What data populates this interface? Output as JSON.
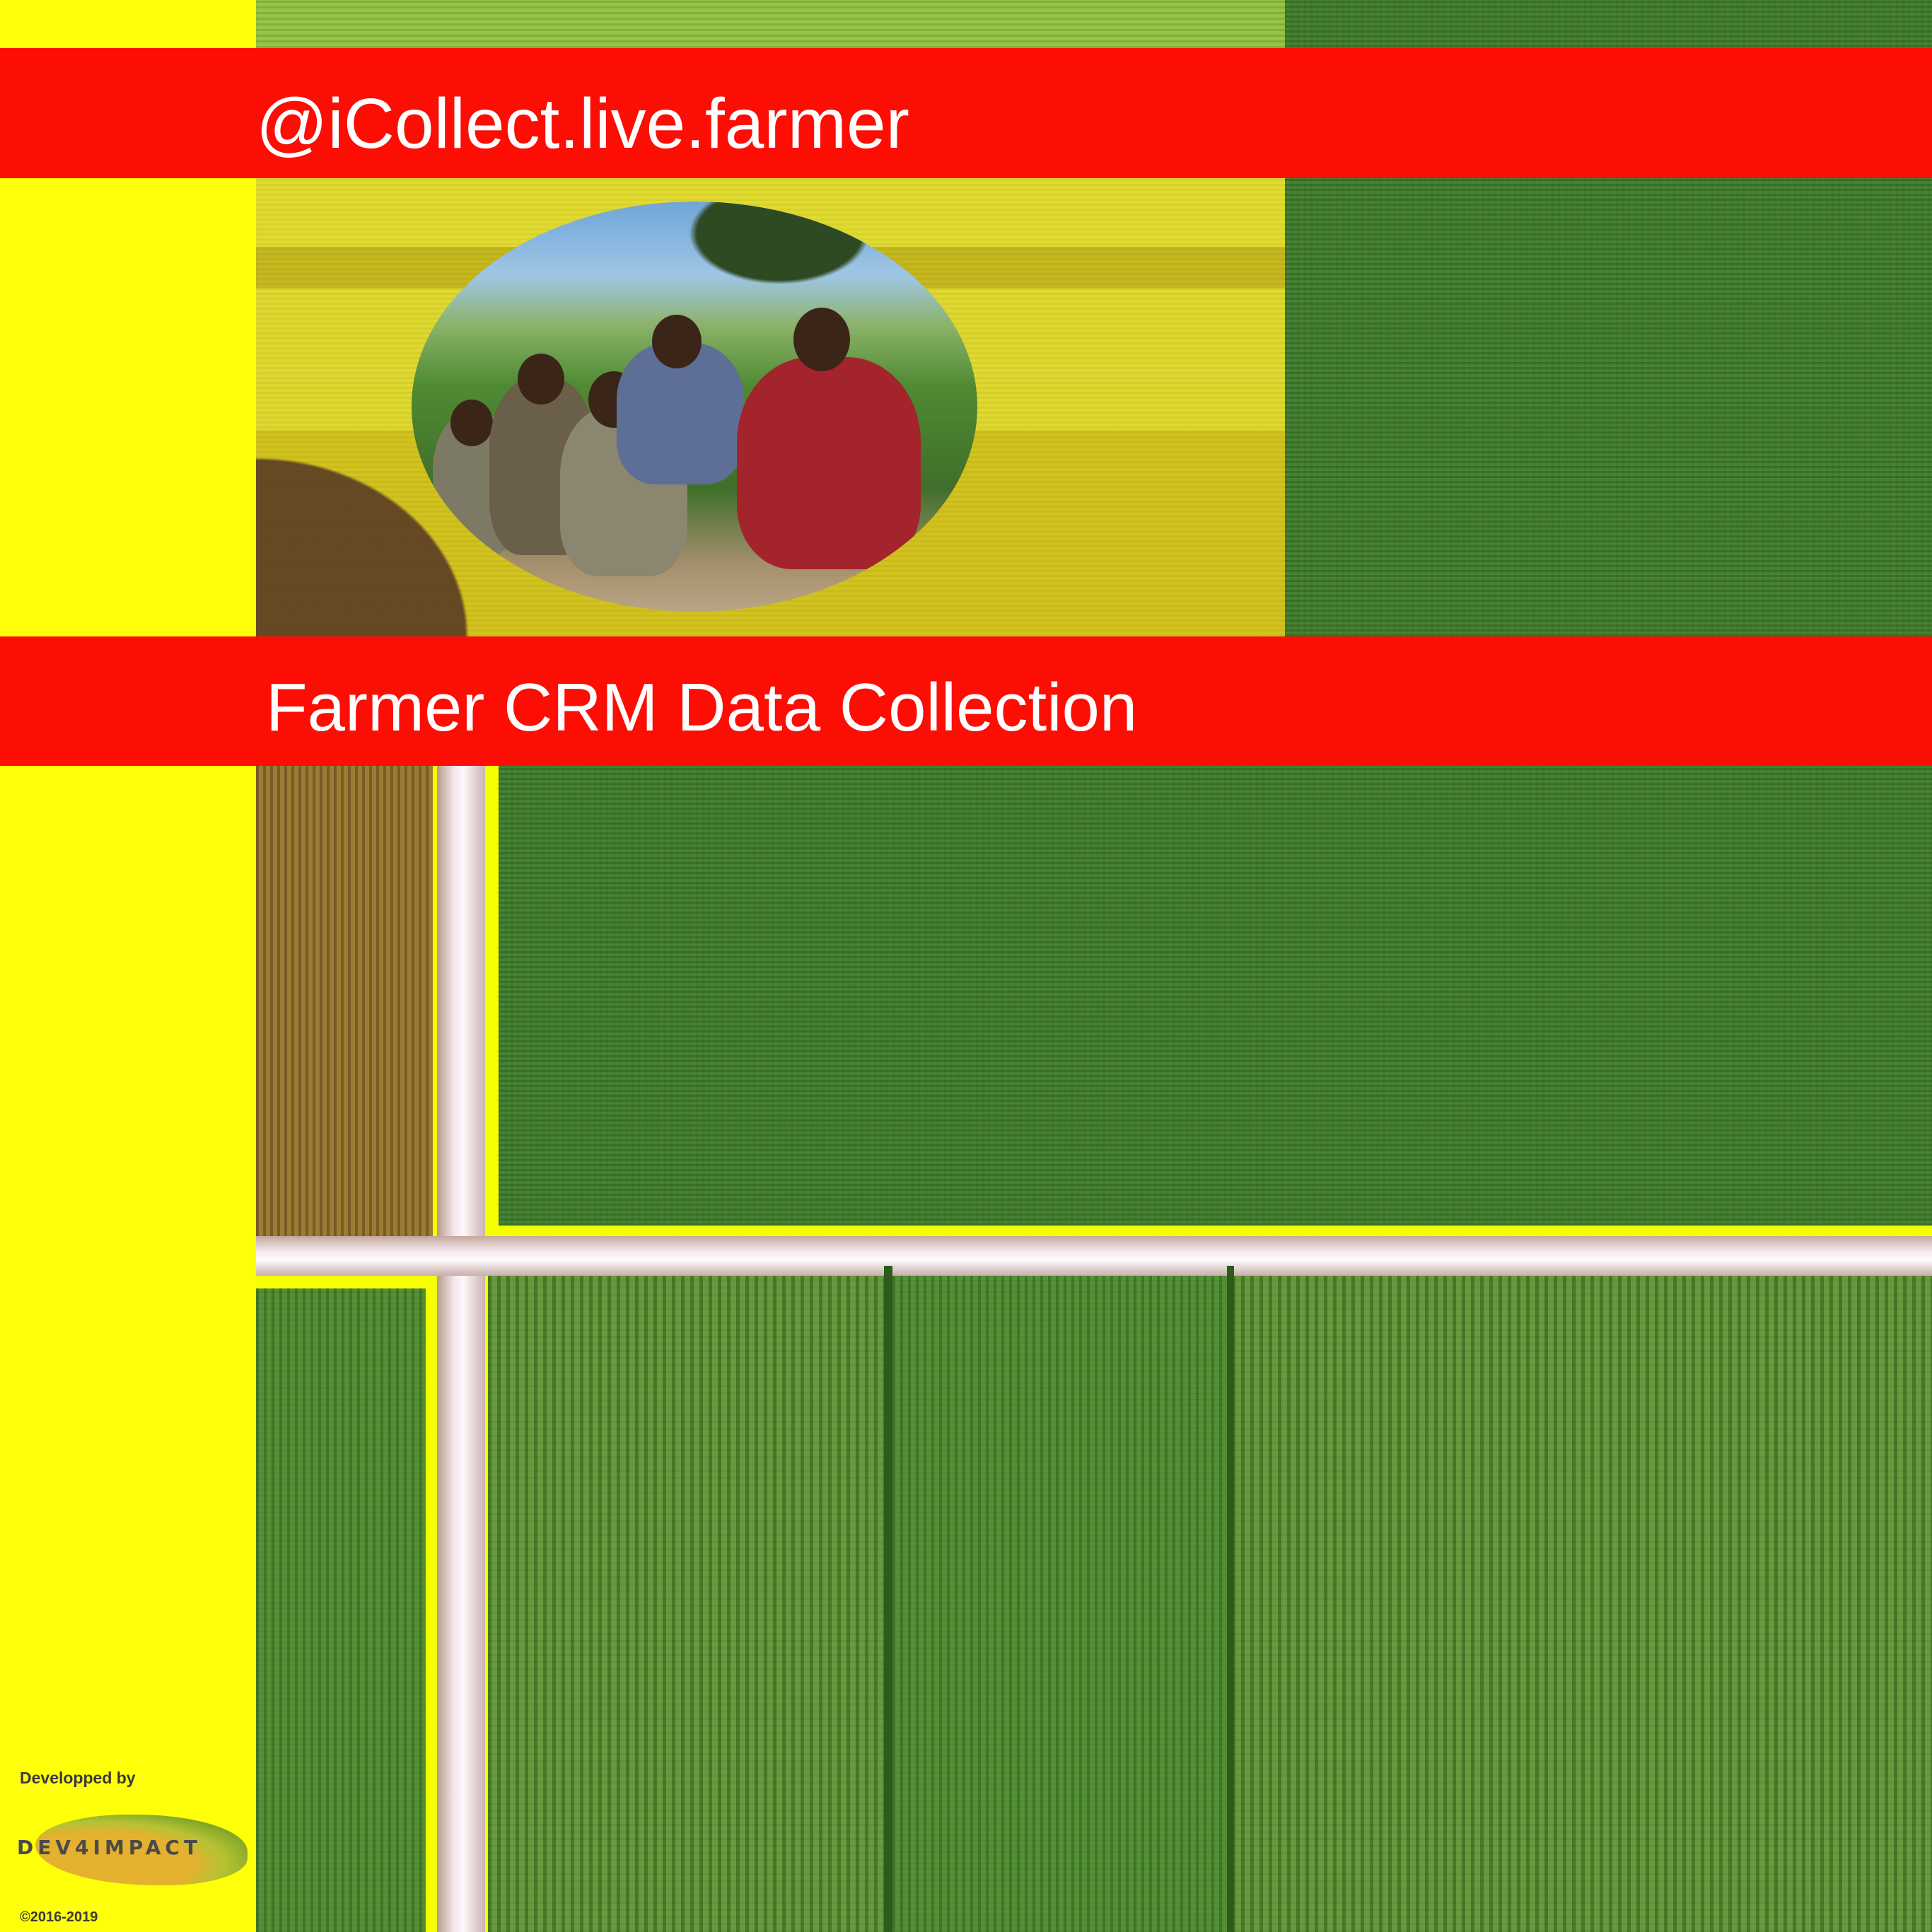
{
  "header": {
    "handle": "@iCollect.live.farmer"
  },
  "main": {
    "title": "Farmer CRM Data Collection"
  },
  "credits": {
    "developed_by": "Developped by",
    "logo_text": "DEV4IMPACT",
    "copyright": "©2016-2019"
  },
  "colors": {
    "banner_red": "#fc0e05",
    "sidebar_yellow": "#ffff0a",
    "text_white": "#ffffff"
  },
  "icons": {
    "logo": "dev4impact-logo-icon",
    "photo": "farmers-photo"
  }
}
